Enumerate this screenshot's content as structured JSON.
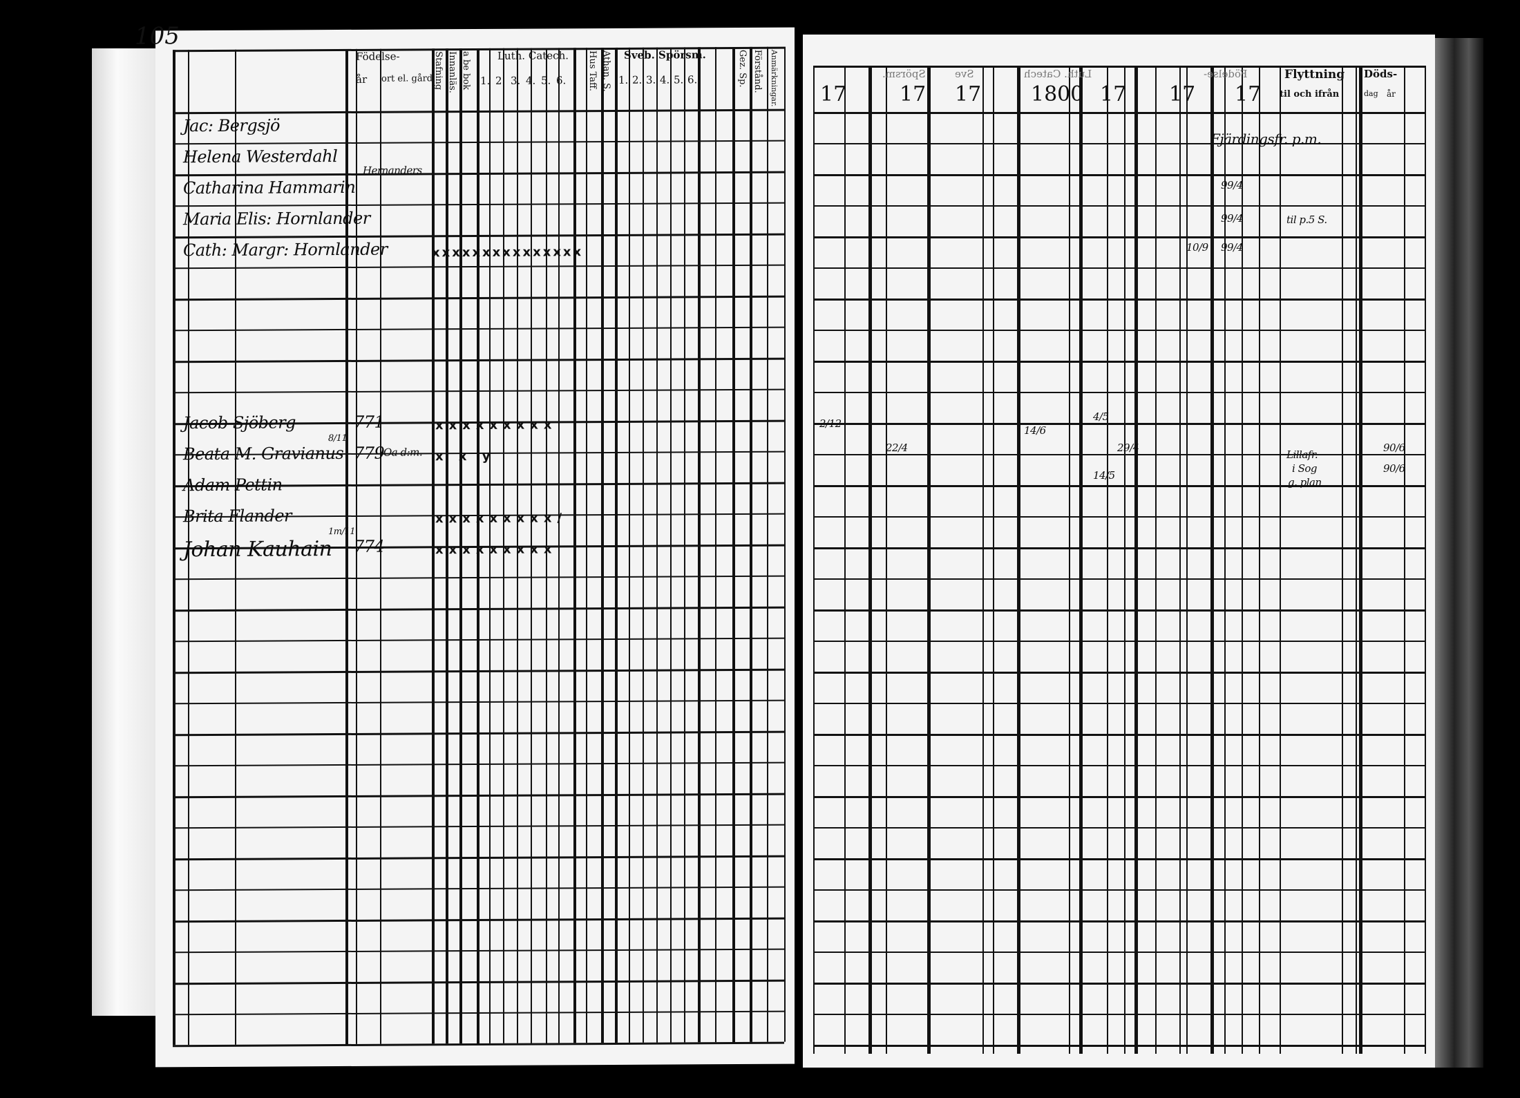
{
  "left_page": {
    "page_number": "105",
    "headers": {
      "fodelse": "Födelse-",
      "ar": "år",
      "ort": "ort el. gård.",
      "stafning": "Stafning",
      "innanlas": "Innanläs.",
      "abebok": "a be bok",
      "luth_catech": "Luth. Catech.",
      "luth_nums": [
        "1.",
        "2.",
        "3.",
        "4.",
        "5.",
        "6."
      ],
      "hus_taff": "Hus Taff.",
      "athan": "Athan. S.",
      "sveb": "Sveb. Spörsm.",
      "sveb_nums": [
        "1.",
        "2.",
        "3.",
        "4.",
        "5.",
        "6."
      ],
      "gez": "Gez. Sp.",
      "forstand": "Förstånd.",
      "anmark": "Anmärkningar."
    },
    "entries": [
      {
        "name": "Jac: Bergsjö",
        "date": "",
        "year": "",
        "place": "",
        "marks": ""
      },
      {
        "name": "Helena Westerdahl",
        "date": "",
        "year": "",
        "place": "",
        "marks": ""
      },
      {
        "name": "Catharina Hammarin",
        "date": "",
        "year": "",
        "place": "",
        "marks": "",
        "note_above": "Hernanders"
      },
      {
        "name": "Maria Elis: Hornlander",
        "date": "",
        "year": "",
        "place": "",
        "marks": ""
      },
      {
        "name": "Cath: Margr: Hornlander",
        "date": "",
        "year": "",
        "place": "",
        "marks": "xxxxxxxxxxxxxxx"
      },
      {
        "name": "Jacob Sjöberg",
        "date": "",
        "year": "771",
        "place": "",
        "marks": "xxxxxxxxx"
      },
      {
        "name": "Beata M. Gravianus",
        "date": "8/11",
        "year": "779",
        "place": "Oa d:m.",
        "marks": "x x y"
      },
      {
        "name": "Adam Pettin",
        "date": "",
        "year": "",
        "place": "",
        "marks": ""
      },
      {
        "name": "Brita Flander",
        "date": "",
        "year": "",
        "place": "",
        "marks": "xxxxxxxxx/"
      },
      {
        "name": "Johan Kauhain",
        "date": "1m/11",
        "year": "774",
        "place": "",
        "marks": "xxxxxxxxx"
      }
    ]
  },
  "right_page": {
    "year_headers": [
      "17",
      "17",
      "17",
      "1800",
      "17",
      "17",
      "17"
    ],
    "headers": {
      "sporsm": "Spörsm.",
      "sve": "Sve",
      "luth": "Luth. Catech",
      "fodelse": "Födelse-",
      "flyttning": "Flyttning",
      "til_ifran": "til och ifrån",
      "dods": "Döds-",
      "dag": "dag",
      "ar": "år"
    },
    "annotations": {
      "moved_1": "Fjärdingsfr. p.m.",
      "moved_2": "til p.5 S.",
      "moved_3": "Lillafr.",
      "moved_4": "i Sog",
      "moved_5": "g. plan",
      "date_a": "99/4",
      "date_b": "99/4",
      "date_c": "99/4",
      "date_d": "10/9",
      "date_e": "2/12",
      "date_f": "14/6",
      "date_g": "4/5",
      "date_h": "14/5",
      "date_i": "29/4",
      "date_j": "22/4",
      "date_k": "90/6",
      "date_l": "90/6"
    }
  }
}
